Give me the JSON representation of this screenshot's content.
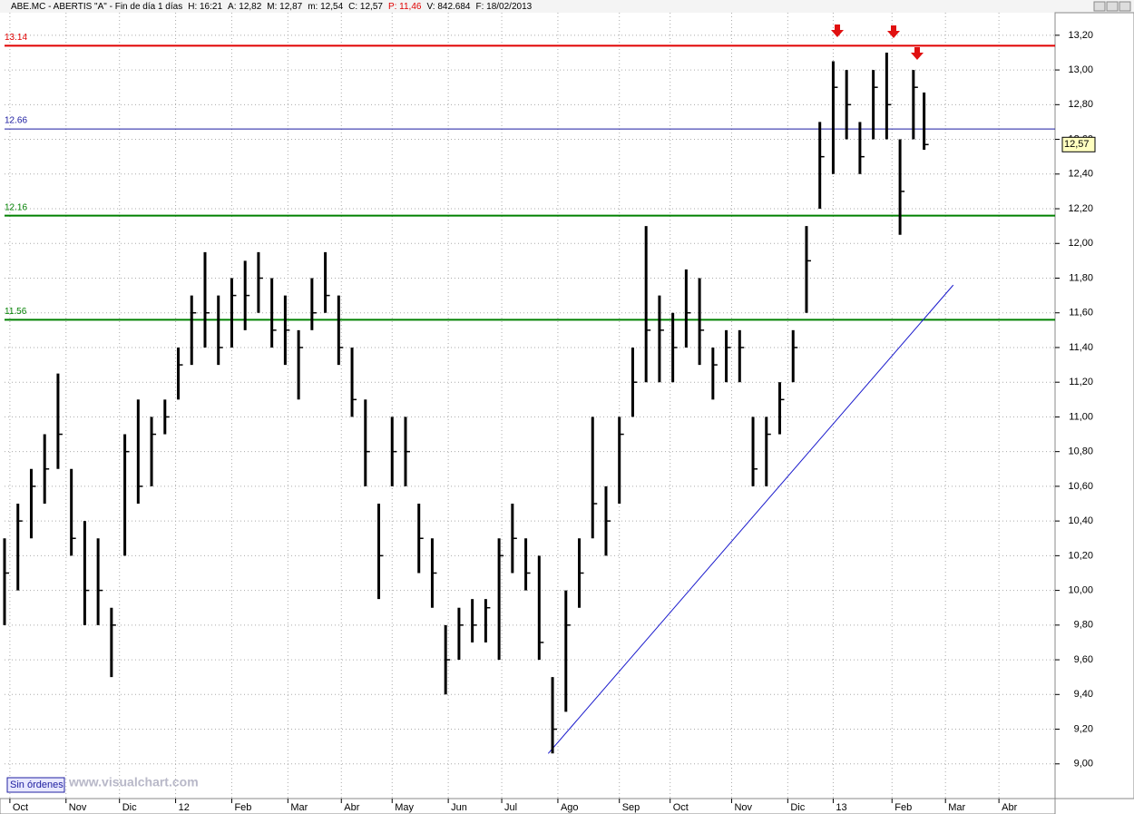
{
  "header": {
    "items": [
      "ABE.MC - ABERTIS  \"A\" - Fin de día 1 días",
      "H: 16:21",
      "A: 12,82",
      "M: 12,87",
      "m: 12,54",
      "C: 12,57",
      "P: 11,46",
      "V: 842.684",
      "F: 18/02/2013"
    ]
  },
  "footer": {
    "button": "Sin órdenes",
    "watermark": "www.visualchart.com"
  },
  "chart_data": {
    "type": "ohlc",
    "x": [
      0,
      5,
      10,
      15,
      20,
      25,
      30,
      35,
      40,
      45,
      50,
      55,
      60,
      65,
      70,
      75,
      80,
      85,
      90,
      95,
      100,
      105,
      110,
      115,
      120,
      125,
      130,
      135,
      140,
      145,
      150,
      155,
      160,
      165,
      170,
      175,
      180,
      185,
      190,
      195,
      200,
      205,
      210,
      215,
      220,
      225,
      230,
      235,
      240,
      245,
      250,
      255,
      260,
      265,
      270,
      275,
      280,
      285,
      290,
      295,
      300,
      305,
      310,
      315,
      320,
      325,
      330,
      335,
      340,
      344
    ],
    "high": [
      10.3,
      10.5,
      10.7,
      10.9,
      11.25,
      10.7,
      10.4,
      10.3,
      9.9,
      10.9,
      11.1,
      11.0,
      11.1,
      11.4,
      11.7,
      11.95,
      11.7,
      11.8,
      11.9,
      11.95,
      11.8,
      11.7,
      11.5,
      11.8,
      11.95,
      11.7,
      11.4,
      11.1,
      10.5,
      11.0,
      11.0,
      10.5,
      10.3,
      9.8,
      9.9,
      9.95,
      9.95,
      10.3,
      10.5,
      10.3,
      10.2,
      9.5,
      10.0,
      10.3,
      11.0,
      10.6,
      11.0,
      11.4,
      12.1,
      11.7,
      11.6,
      11.85,
      11.8,
      11.4,
      11.5,
      11.5,
      11.0,
      11.0,
      11.2,
      11.5,
      12.1,
      12.7,
      13.05,
      13.0,
      12.7,
      13.0,
      13.1,
      12.6,
      13.0,
      12.87
    ],
    "low": [
      9.8,
      10.0,
      10.3,
      10.5,
      10.7,
      10.2,
      9.8,
      9.8,
      9.5,
      10.2,
      10.5,
      10.6,
      10.9,
      11.1,
      11.3,
      11.4,
      11.3,
      11.4,
      11.5,
      11.6,
      11.4,
      11.3,
      11.1,
      11.5,
      11.6,
      11.3,
      11.0,
      10.6,
      9.95,
      10.6,
      10.6,
      10.1,
      9.9,
      9.4,
      9.6,
      9.7,
      9.7,
      9.6,
      10.1,
      10.0,
      9.6,
      9.06,
      9.3,
      9.9,
      10.3,
      10.2,
      10.5,
      11.0,
      11.2,
      11.2,
      11.2,
      11.4,
      11.3,
      11.1,
      11.2,
      11.2,
      10.6,
      10.6,
      10.9,
      11.2,
      11.6,
      12.2,
      12.4,
      12.6,
      12.4,
      12.6,
      12.6,
      12.05,
      12.6,
      12.54
    ],
    "close": [
      10.1,
      10.4,
      10.6,
      10.7,
      10.9,
      10.3,
      10.0,
      10.0,
      9.8,
      10.8,
      10.6,
      10.9,
      11.0,
      11.3,
      11.6,
      11.6,
      11.4,
      11.7,
      11.7,
      11.8,
      11.5,
      11.5,
      11.4,
      11.6,
      11.7,
      11.4,
      11.1,
      10.8,
      10.2,
      10.8,
      10.8,
      10.3,
      10.1,
      9.6,
      9.8,
      9.8,
      9.9,
      10.2,
      10.3,
      10.1,
      9.7,
      9.2,
      9.8,
      10.1,
      10.5,
      10.4,
      10.9,
      11.2,
      11.5,
      11.5,
      11.4,
      11.6,
      11.5,
      11.3,
      11.4,
      11.4,
      10.7,
      10.9,
      11.1,
      11.4,
      11.9,
      12.5,
      12.9,
      12.8,
      12.5,
      12.9,
      12.8,
      12.3,
      12.9,
      12.57
    ],
    "color": "#000000",
    "xlim": [
      0,
      393
    ],
    "xticks": [
      {
        "value": 2,
        "label": "Oct"
      },
      {
        "value": 23,
        "label": "Nov"
      },
      {
        "value": 43,
        "label": "Dic"
      },
      {
        "value": 64,
        "label": "12"
      },
      {
        "value": 85,
        "label": "Feb"
      },
      {
        "value": 106,
        "label": "Mar"
      },
      {
        "value": 126,
        "label": "Abr"
      },
      {
        "value": 145,
        "label": "May"
      },
      {
        "value": 166,
        "label": "Jun"
      },
      {
        "value": 186,
        "label": "Jul"
      },
      {
        "value": 207,
        "label": "Ago"
      },
      {
        "value": 230,
        "label": "Sep"
      },
      {
        "value": 249,
        "label": "Oct"
      },
      {
        "value": 272,
        "label": "Nov"
      },
      {
        "value": 293,
        "label": "Dic"
      },
      {
        "value": 310,
        "label": "13"
      },
      {
        "value": 332,
        "label": "Feb"
      },
      {
        "value": 352,
        "label": "Mar"
      },
      {
        "value": 372,
        "label": "Abr"
      }
    ],
    "ylim": [
      8.8,
      13.33
    ],
    "yticks": [
      {
        "value": 9.0,
        "label": "9,00"
      },
      {
        "value": 9.2,
        "label": "9,20"
      },
      {
        "value": 9.4,
        "label": "9,40"
      },
      {
        "value": 9.6,
        "label": "9,60"
      },
      {
        "value": 9.8,
        "label": "9,80"
      },
      {
        "value": 10.0,
        "label": "10,00"
      },
      {
        "value": 10.2,
        "label": "10,20"
      },
      {
        "value": 10.4,
        "label": "10,40"
      },
      {
        "value": 10.6,
        "label": "10,60"
      },
      {
        "value": 10.8,
        "label": "10,80"
      },
      {
        "value": 11.0,
        "label": "11,00"
      },
      {
        "value": 11.2,
        "label": "11,20"
      },
      {
        "value": 11.4,
        "label": "11,40"
      },
      {
        "value": 11.6,
        "label": "11,60"
      },
      {
        "value": 11.8,
        "label": "11,80"
      },
      {
        "value": 12.0,
        "label": "12,00"
      },
      {
        "value": 12.2,
        "label": "12,20"
      },
      {
        "value": 12.4,
        "label": "12,40"
      },
      {
        "value": 12.6,
        "label": "12,60"
      },
      {
        "value": 12.8,
        "label": "12,80"
      },
      {
        "value": 13.0,
        "label": "13,00"
      },
      {
        "value": 13.2,
        "label": "13,20"
      }
    ],
    "grid": true,
    "levels": [
      {
        "value": 13.14,
        "color": "#e00000"
      },
      {
        "value": 12.66,
        "color": "#1a1aa0"
      },
      {
        "value": 12.16,
        "color": "#008000"
      },
      {
        "value": 11.56,
        "color": "#008000"
      }
    ],
    "trendline": {
      "x": [
        203.4,
        354.9
      ],
      "y": [
        9.06,
        11.76
      ],
      "color": "#1a1acc"
    },
    "last_price": {
      "value": 12.57,
      "label": "12,57"
    }
  }
}
